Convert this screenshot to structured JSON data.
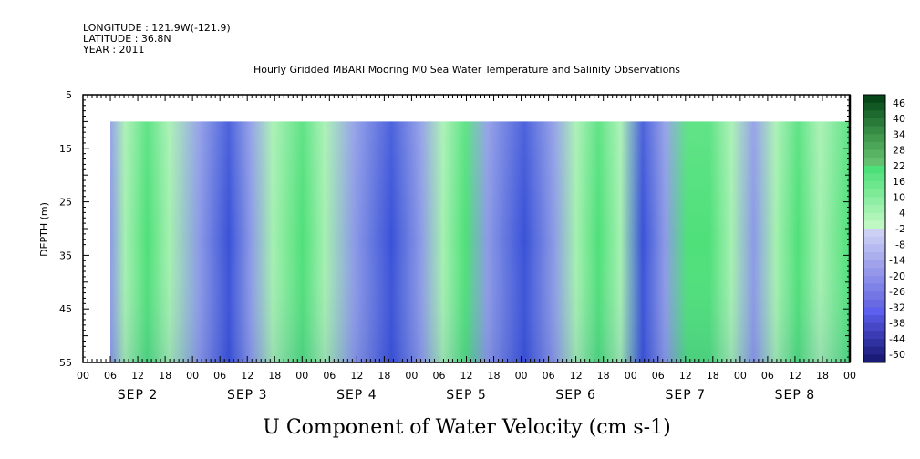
{
  "header": {
    "longitude": "LONGITUDE : 121.9W(-121.9)",
    "latitude": "LATITUDE : 36.8N",
    "year": "YEAR : 2011",
    "title": "Hourly Gridded MBARI Mooring M0 Sea Water Temperature and Salinity Observations"
  },
  "chart_data": {
    "type": "heatmap",
    "title": "Hourly Gridded MBARI Mooring M0 Sea Water Temperature and Salinity Observations",
    "variable_label": "U Component of Water Velocity (cm s-1)",
    "ylabel": "DEPTH (m)",
    "y_ticks": [
      "5",
      "15",
      "25",
      "35",
      "45",
      "55"
    ],
    "ylim": [
      55,
      5
    ],
    "x_hour_ticks": [
      "00",
      "06",
      "12",
      "18",
      "00",
      "06",
      "12",
      "18",
      "00",
      "06",
      "12",
      "18",
      "00",
      "06",
      "12",
      "18",
      "00",
      "06",
      "12",
      "18",
      "00",
      "06",
      "12",
      "18",
      "00",
      "06",
      "12",
      "18",
      "00"
    ],
    "x_day_labels": [
      "SEP  2",
      "SEP  3",
      "SEP  4",
      "SEP  5",
      "SEP  6",
      "SEP  7",
      "SEP  8"
    ],
    "x_range_hours": [
      0,
      168
    ],
    "data_start_hour": 6,
    "data_depth_range_m": [
      10,
      55
    ],
    "colorbar_labels": [
      "46",
      "40",
      "34",
      "28",
      "22",
      "16",
      "10",
      "4",
      "-2",
      "-8",
      "-14",
      "-20",
      "-26",
      "-32",
      "-38",
      "-44",
      "-50"
    ],
    "colorbar_range": [
      -50,
      50
    ],
    "colors": {
      "negative": "#8c9ae6",
      "negative_strong": "#3a52d8",
      "near_zero": "#a4f0b0",
      "positive": "#4fe07a",
      "positive_strong": "#0a6b22"
    },
    "grid": false
  }
}
